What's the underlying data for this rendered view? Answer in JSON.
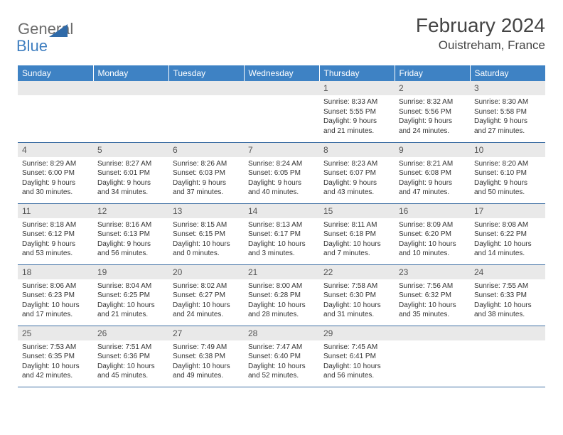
{
  "logo": {
    "text_general": "General",
    "text_blue": "Blue",
    "triangle_color": "#2f6aa8"
  },
  "title": "February 2024",
  "location": "Ouistreham, France",
  "colors": {
    "header_bg": "#3e82c4",
    "header_fg": "#ffffff",
    "daynum_bg": "#e9e9e9",
    "border": "#3e6fa3",
    "body_bg": "#ffffff",
    "text": "#333333"
  },
  "weekdays": [
    "Sunday",
    "Monday",
    "Tuesday",
    "Wednesday",
    "Thursday",
    "Friday",
    "Saturday"
  ],
  "grid": {
    "cols": 7,
    "rows": 5,
    "leading_blanks": 4,
    "days_in_month": 29
  },
  "days": {
    "1": {
      "sunrise": "Sunrise: 8:33 AM",
      "sunset": "Sunset: 5:55 PM",
      "daylight": "Daylight: 9 hours and 21 minutes."
    },
    "2": {
      "sunrise": "Sunrise: 8:32 AM",
      "sunset": "Sunset: 5:56 PM",
      "daylight": "Daylight: 9 hours and 24 minutes."
    },
    "3": {
      "sunrise": "Sunrise: 8:30 AM",
      "sunset": "Sunset: 5:58 PM",
      "daylight": "Daylight: 9 hours and 27 minutes."
    },
    "4": {
      "sunrise": "Sunrise: 8:29 AM",
      "sunset": "Sunset: 6:00 PM",
      "daylight": "Daylight: 9 hours and 30 minutes."
    },
    "5": {
      "sunrise": "Sunrise: 8:27 AM",
      "sunset": "Sunset: 6:01 PM",
      "daylight": "Daylight: 9 hours and 34 minutes."
    },
    "6": {
      "sunrise": "Sunrise: 8:26 AM",
      "sunset": "Sunset: 6:03 PM",
      "daylight": "Daylight: 9 hours and 37 minutes."
    },
    "7": {
      "sunrise": "Sunrise: 8:24 AM",
      "sunset": "Sunset: 6:05 PM",
      "daylight": "Daylight: 9 hours and 40 minutes."
    },
    "8": {
      "sunrise": "Sunrise: 8:23 AM",
      "sunset": "Sunset: 6:07 PM",
      "daylight": "Daylight: 9 hours and 43 minutes."
    },
    "9": {
      "sunrise": "Sunrise: 8:21 AM",
      "sunset": "Sunset: 6:08 PM",
      "daylight": "Daylight: 9 hours and 47 minutes."
    },
    "10": {
      "sunrise": "Sunrise: 8:20 AM",
      "sunset": "Sunset: 6:10 PM",
      "daylight": "Daylight: 9 hours and 50 minutes."
    },
    "11": {
      "sunrise": "Sunrise: 8:18 AM",
      "sunset": "Sunset: 6:12 PM",
      "daylight": "Daylight: 9 hours and 53 minutes."
    },
    "12": {
      "sunrise": "Sunrise: 8:16 AM",
      "sunset": "Sunset: 6:13 PM",
      "daylight": "Daylight: 9 hours and 56 minutes."
    },
    "13": {
      "sunrise": "Sunrise: 8:15 AM",
      "sunset": "Sunset: 6:15 PM",
      "daylight": "Daylight: 10 hours and 0 minutes."
    },
    "14": {
      "sunrise": "Sunrise: 8:13 AM",
      "sunset": "Sunset: 6:17 PM",
      "daylight": "Daylight: 10 hours and 3 minutes."
    },
    "15": {
      "sunrise": "Sunrise: 8:11 AM",
      "sunset": "Sunset: 6:18 PM",
      "daylight": "Daylight: 10 hours and 7 minutes."
    },
    "16": {
      "sunrise": "Sunrise: 8:09 AM",
      "sunset": "Sunset: 6:20 PM",
      "daylight": "Daylight: 10 hours and 10 minutes."
    },
    "17": {
      "sunrise": "Sunrise: 8:08 AM",
      "sunset": "Sunset: 6:22 PM",
      "daylight": "Daylight: 10 hours and 14 minutes."
    },
    "18": {
      "sunrise": "Sunrise: 8:06 AM",
      "sunset": "Sunset: 6:23 PM",
      "daylight": "Daylight: 10 hours and 17 minutes."
    },
    "19": {
      "sunrise": "Sunrise: 8:04 AM",
      "sunset": "Sunset: 6:25 PM",
      "daylight": "Daylight: 10 hours and 21 minutes."
    },
    "20": {
      "sunrise": "Sunrise: 8:02 AM",
      "sunset": "Sunset: 6:27 PM",
      "daylight": "Daylight: 10 hours and 24 minutes."
    },
    "21": {
      "sunrise": "Sunrise: 8:00 AM",
      "sunset": "Sunset: 6:28 PM",
      "daylight": "Daylight: 10 hours and 28 minutes."
    },
    "22": {
      "sunrise": "Sunrise: 7:58 AM",
      "sunset": "Sunset: 6:30 PM",
      "daylight": "Daylight: 10 hours and 31 minutes."
    },
    "23": {
      "sunrise": "Sunrise: 7:56 AM",
      "sunset": "Sunset: 6:32 PM",
      "daylight": "Daylight: 10 hours and 35 minutes."
    },
    "24": {
      "sunrise": "Sunrise: 7:55 AM",
      "sunset": "Sunset: 6:33 PM",
      "daylight": "Daylight: 10 hours and 38 minutes."
    },
    "25": {
      "sunrise": "Sunrise: 7:53 AM",
      "sunset": "Sunset: 6:35 PM",
      "daylight": "Daylight: 10 hours and 42 minutes."
    },
    "26": {
      "sunrise": "Sunrise: 7:51 AM",
      "sunset": "Sunset: 6:36 PM",
      "daylight": "Daylight: 10 hours and 45 minutes."
    },
    "27": {
      "sunrise": "Sunrise: 7:49 AM",
      "sunset": "Sunset: 6:38 PM",
      "daylight": "Daylight: 10 hours and 49 minutes."
    },
    "28": {
      "sunrise": "Sunrise: 7:47 AM",
      "sunset": "Sunset: 6:40 PM",
      "daylight": "Daylight: 10 hours and 52 minutes."
    },
    "29": {
      "sunrise": "Sunrise: 7:45 AM",
      "sunset": "Sunset: 6:41 PM",
      "daylight": "Daylight: 10 hours and 56 minutes."
    }
  }
}
